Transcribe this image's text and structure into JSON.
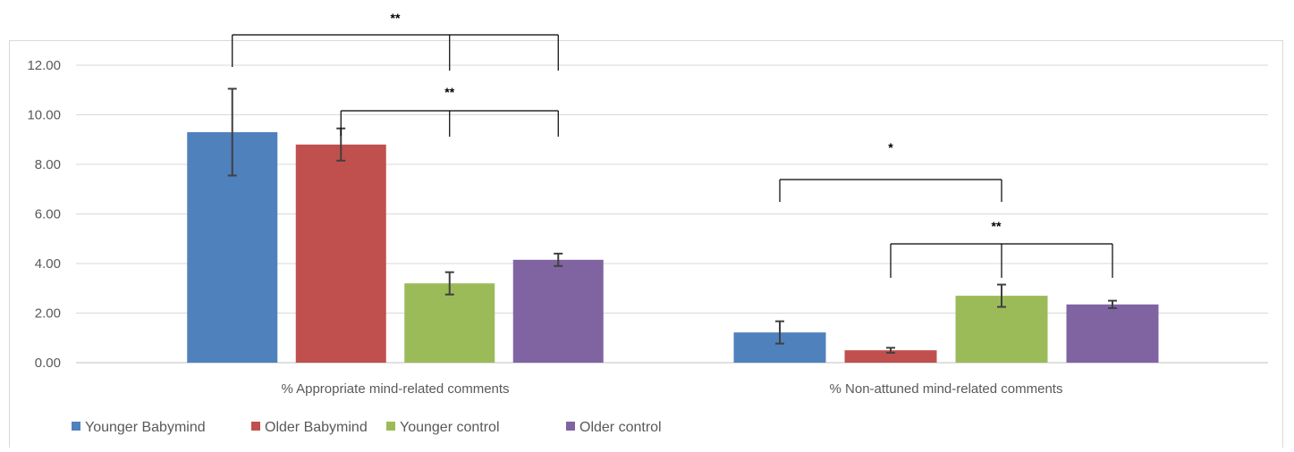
{
  "chart_data": {
    "type": "bar",
    "categories": [
      "% Appropriate mind-related comments",
      "% Non-attuned mind-related comments"
    ],
    "series": [
      {
        "name": "Younger Babymind",
        "color": "#4f81bd",
        "values": [
          9.3,
          1.22
        ],
        "error": [
          1.75,
          0.45
        ]
      },
      {
        "name": "Older Babymind",
        "color": "#c0504d",
        "values": [
          8.8,
          0.5
        ],
        "error": [
          0.65,
          0.1
        ]
      },
      {
        "name": "Younger control",
        "color": "#9bbb59",
        "values": [
          3.2,
          2.7
        ],
        "error": [
          0.45,
          0.45
        ]
      },
      {
        "name": "Older control",
        "color": "#8064a2",
        "values": [
          4.15,
          2.35
        ],
        "error": [
          0.25,
          0.15
        ]
      }
    ],
    "ylim": [
      0,
      12
    ],
    "yticks": [
      "0.00",
      "2.00",
      "4.00",
      "6.00",
      "8.00",
      "10.00",
      "12.00"
    ],
    "grid": true,
    "legend_position": "bottom-left",
    "significance": [
      {
        "label": "**",
        "category": 0,
        "from_series": 0,
        "to_series": [
          2,
          3
        ]
      },
      {
        "label": "**",
        "category": 0,
        "from_series": 1,
        "to_series": [
          2,
          3
        ]
      },
      {
        "label": "*",
        "category": 1,
        "from_series": 0,
        "to_series": [
          2
        ]
      },
      {
        "label": "**",
        "category": 1,
        "from_series": 1,
        "to_series": [
          2,
          3
        ]
      }
    ]
  }
}
